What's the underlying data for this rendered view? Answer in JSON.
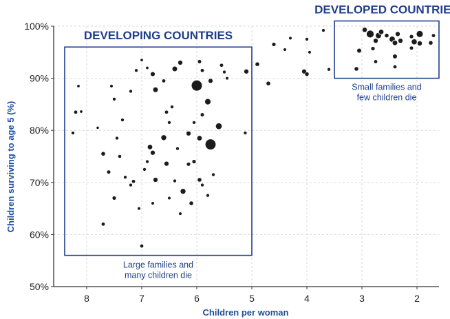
{
  "chart_data": {
    "type": "scatter",
    "title": "",
    "xlabel": "Children per woman",
    "ylabel": "Children surviving to age 5 (%)",
    "xlim": [
      8.6,
      1.6
    ],
    "ylim": [
      50,
      100
    ],
    "x_ticks": [
      8,
      7,
      6,
      5,
      4,
      3,
      2
    ],
    "y_ticks": [
      50,
      60,
      70,
      80,
      90,
      100
    ],
    "y_tick_format": "%",
    "x_reversed": true,
    "grid": true,
    "colors": {
      "bubble": "#1c1c1c",
      "bubble_stroke": "#ffffff",
      "annotation": "#1f3f8a",
      "axis_label": "#1f4e9c",
      "grid": "#d9d9d9"
    },
    "bubble_size_meaning": "population",
    "points": [
      {
        "x": 8.2,
        "y": 83.5,
        "s": 1.2
      },
      {
        "x": 8.15,
        "y": 88.5,
        "s": 0.8
      },
      {
        "x": 8.25,
        "y": 79.5,
        "s": 1.0
      },
      {
        "x": 8.1,
        "y": 83.6,
        "s": 0.8
      },
      {
        "x": 7.8,
        "y": 80.5,
        "s": 0.7
      },
      {
        "x": 7.7,
        "y": 75.5,
        "s": 1.6
      },
      {
        "x": 7.6,
        "y": 72,
        "s": 1.3
      },
      {
        "x": 7.5,
        "y": 67,
        "s": 1.4
      },
      {
        "x": 7.7,
        "y": 62,
        "s": 1.2
      },
      {
        "x": 7.4,
        "y": 75,
        "s": 1.1
      },
      {
        "x": 7.45,
        "y": 78.5,
        "s": 1.0
      },
      {
        "x": 7.3,
        "y": 71,
        "s": 1.0
      },
      {
        "x": 7.35,
        "y": 82,
        "s": 1.0
      },
      {
        "x": 7.5,
        "y": 86,
        "s": 1.0
      },
      {
        "x": 7.55,
        "y": 88.5,
        "s": 0.9
      },
      {
        "x": 7.2,
        "y": 87.5,
        "s": 1.0
      },
      {
        "x": 7.1,
        "y": 91.5,
        "s": 1.0
      },
      {
        "x": 7.0,
        "y": 93.5,
        "s": 0.8
      },
      {
        "x": 6.9,
        "y": 92,
        "s": 0.8
      },
      {
        "x": 7.2,
        "y": 69.5,
        "s": 1.0
      },
      {
        "x": 7.15,
        "y": 70.2,
        "s": 1.2
      },
      {
        "x": 7.05,
        "y": 65,
        "s": 0.9
      },
      {
        "x": 7.0,
        "y": 57.8,
        "s": 1.2
      },
      {
        "x": 6.85,
        "y": 76.8,
        "s": 2.6
      },
      {
        "x": 6.8,
        "y": 75.7,
        "s": 2.0
      },
      {
        "x": 6.9,
        "y": 74,
        "s": 1.0
      },
      {
        "x": 6.75,
        "y": 70.5,
        "s": 2.0
      },
      {
        "x": 6.8,
        "y": 66,
        "s": 0.9
      },
      {
        "x": 6.95,
        "y": 72.5,
        "s": 1.0
      },
      {
        "x": 6.75,
        "y": 87.8,
        "s": 2.7
      },
      {
        "x": 6.8,
        "y": 90.8,
        "s": 2.2
      },
      {
        "x": 6.6,
        "y": 89.5,
        "s": 1.2
      },
      {
        "x": 6.55,
        "y": 83.5,
        "s": 1.2
      },
      {
        "x": 6.6,
        "y": 78.6,
        "s": 3.0
      },
      {
        "x": 6.55,
        "y": 73.6,
        "s": 2.0
      },
      {
        "x": 6.5,
        "y": 81.5,
        "s": 1.0
      },
      {
        "x": 6.45,
        "y": 84.5,
        "s": 1.0
      },
      {
        "x": 6.4,
        "y": 91.8,
        "s": 2.7
      },
      {
        "x": 6.3,
        "y": 93,
        "s": 2.0
      },
      {
        "x": 6.35,
        "y": 76.5,
        "s": 1.0
      },
      {
        "x": 6.25,
        "y": 68.3,
        "s": 3.0
      },
      {
        "x": 6.3,
        "y": 64,
        "s": 0.9
      },
      {
        "x": 6.4,
        "y": 70.3,
        "s": 1.0
      },
      {
        "x": 6.5,
        "y": 67,
        "s": 0.9
      },
      {
        "x": 6.15,
        "y": 73.5,
        "s": 1.3
      },
      {
        "x": 6.1,
        "y": 66,
        "s": 1.6
      },
      {
        "x": 6.05,
        "y": 74,
        "s": 1.4
      },
      {
        "x": 6.0,
        "y": 88.6,
        "s": 11.0
      },
      {
        "x": 5.95,
        "y": 93.2,
        "s": 1.3
      },
      {
        "x": 5.9,
        "y": 91.5,
        "s": 1.2
      },
      {
        "x": 5.8,
        "y": 85.5,
        "s": 3.6
      },
      {
        "x": 5.75,
        "y": 89.5,
        "s": 2.2
      },
      {
        "x": 5.9,
        "y": 83,
        "s": 1.3
      },
      {
        "x": 6.05,
        "y": 81.5,
        "s": 1.0
      },
      {
        "x": 6.15,
        "y": 79.4,
        "s": 2.0
      },
      {
        "x": 5.75,
        "y": 77.3,
        "s": 10.8
      },
      {
        "x": 5.95,
        "y": 78.5,
        "s": 2.6
      },
      {
        "x": 5.6,
        "y": 80.8,
        "s": 4.0
      },
      {
        "x": 5.95,
        "y": 70.5,
        "s": 1.6
      },
      {
        "x": 5.7,
        "y": 71.5,
        "s": 1.0
      },
      {
        "x": 5.8,
        "y": 67.5,
        "s": 1.0
      },
      {
        "x": 5.9,
        "y": 69.5,
        "s": 1.0
      },
      {
        "x": 5.55,
        "y": 92.5,
        "s": 1.2
      },
      {
        "x": 5.5,
        "y": 91.2,
        "s": 1.0
      },
      {
        "x": 5.45,
        "y": 90,
        "s": 0.9
      },
      {
        "x": 5.1,
        "y": 91.3,
        "s": 2.0
      },
      {
        "x": 5.12,
        "y": 79.5,
        "s": 1.0
      },
      {
        "x": 4.9,
        "y": 92.7,
        "s": 1.6
      },
      {
        "x": 4.7,
        "y": 89,
        "s": 1.6
      },
      {
        "x": 4.6,
        "y": 96.5,
        "s": 1.4
      },
      {
        "x": 4.4,
        "y": 95.5,
        "s": 0.9
      },
      {
        "x": 4.3,
        "y": 97.7,
        "s": 0.9
      },
      {
        "x": 4.05,
        "y": 91.3,
        "s": 2.0
      },
      {
        "x": 4.0,
        "y": 90.8,
        "s": 1.6
      },
      {
        "x": 4.0,
        "y": 97.5,
        "s": 1.0
      },
      {
        "x": 3.95,
        "y": 95,
        "s": 0.9
      },
      {
        "x": 3.7,
        "y": 99.2,
        "s": 1.0
      },
      {
        "x": 3.6,
        "y": 91.7,
        "s": 1.0
      },
      {
        "x": 3.1,
        "y": 91.8,
        "s": 1.6
      },
      {
        "x": 3.05,
        "y": 95.3,
        "s": 1.8
      },
      {
        "x": 2.95,
        "y": 99.3,
        "s": 2.4
      },
      {
        "x": 2.85,
        "y": 98.5,
        "s": 5.4
      },
      {
        "x": 2.7,
        "y": 98.2,
        "s": 3.4
      },
      {
        "x": 2.65,
        "y": 98.9,
        "s": 2.6
      },
      {
        "x": 2.75,
        "y": 97.2,
        "s": 2.0
      },
      {
        "x": 2.8,
        "y": 95.7,
        "s": 1.4
      },
      {
        "x": 2.75,
        "y": 93.2,
        "s": 1.2
      },
      {
        "x": 2.55,
        "y": 98.2,
        "s": 1.6
      },
      {
        "x": 2.45,
        "y": 97.5,
        "s": 3.4
      },
      {
        "x": 2.4,
        "y": 96.8,
        "s": 2.7
      },
      {
        "x": 2.35,
        "y": 98.5,
        "s": 2.0
      },
      {
        "x": 2.3,
        "y": 97.2,
        "s": 2.0
      },
      {
        "x": 2.4,
        "y": 94.2,
        "s": 1.8
      },
      {
        "x": 2.4,
        "y": 92.2,
        "s": 1.2
      },
      {
        "x": 2.1,
        "y": 98,
        "s": 1.4
      },
      {
        "x": 2.05,
        "y": 97.0,
        "s": 3.2
      },
      {
        "x": 1.95,
        "y": 98.5,
        "s": 4.4
      },
      {
        "x": 1.95,
        "y": 96.7,
        "s": 2.4
      },
      {
        "x": 2.1,
        "y": 95.8,
        "s": 1.3
      },
      {
        "x": 1.75,
        "y": 96.8,
        "s": 1.6
      },
      {
        "x": 1.7,
        "y": 98.2,
        "s": 1.2
      }
    ],
    "annotations": [
      {
        "title": "DEVELOPING COUNTRIES",
        "note_lines": [
          "Large families and",
          "many children die"
        ],
        "x_range": [
          8.4,
          5.0
        ],
        "y_range": [
          56,
          96
        ]
      },
      {
        "title": "DEVELOPED COUNTRIES",
        "note_lines": [
          "Small families and",
          "few children die"
        ],
        "x_range": [
          3.5,
          1.6
        ],
        "y_range": [
          90,
          101
        ]
      }
    ]
  }
}
